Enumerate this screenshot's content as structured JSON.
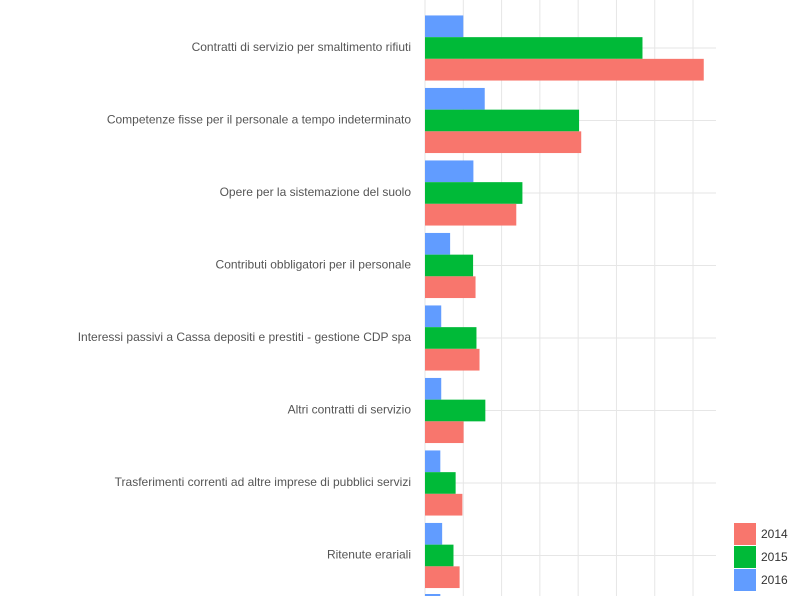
{
  "chart_data": {
    "type": "bar",
    "orientation": "horizontal",
    "title": "",
    "xlabel": "",
    "ylabel": "",
    "xlim": [
      0,
      95
    ],
    "grid": true,
    "legend_position": "bottom-right",
    "categories": [
      "Contratti di servizio per smaltimento rifiuti",
      "Competenze fisse per il personale a tempo indeterminato",
      "Opere per la sistemazione del suolo",
      "Contributi obbligatori per il personale",
      "Interessi passivi a Cassa depositi e prestiti - gestione CDP spa",
      "Altri contratti di servizio",
      "Trasferimenti correnti ad altre imprese di pubblici servizi",
      "Ritenute erariali"
    ],
    "series": [
      {
        "name": "2016",
        "color": "#619CFF",
        "values": [
          12.5,
          19.5,
          15.8,
          8.2,
          5.3,
          5.3,
          5.0,
          5.6
        ]
      },
      {
        "name": "2015",
        "color": "#00BA38",
        "values": [
          71.0,
          50.3,
          31.8,
          15.7,
          16.8,
          19.7,
          10.0,
          9.3
        ]
      },
      {
        "name": "2014",
        "color": "#F8766D",
        "values": [
          91.0,
          51.0,
          29.8,
          16.5,
          17.8,
          12.6,
          12.2,
          11.3
        ]
      }
    ]
  }
}
